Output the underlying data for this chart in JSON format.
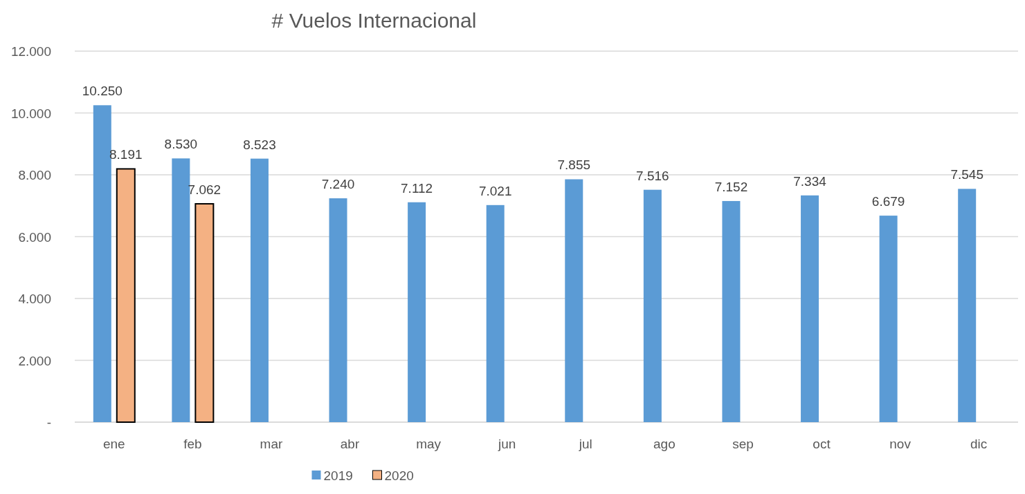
{
  "chart_data": {
    "type": "bar",
    "title": "# Vuelos Internacional",
    "categories": [
      "ene",
      "feb",
      "mar",
      "abr",
      "may",
      "jun",
      "jul",
      "ago",
      "sep",
      "oct",
      "nov",
      "dic"
    ],
    "series": [
      {
        "name": "2019",
        "color": "#5b9bd5",
        "values": [
          10250,
          8530,
          8523,
          7240,
          7112,
          7021,
          7855,
          7516,
          7152,
          7334,
          6679,
          7545
        ],
        "value_labels": [
          "10.250",
          "8.530",
          "8.523",
          "7.240",
          "7.112",
          "7.021",
          "7.855",
          "7.516",
          "7.152",
          "7.334",
          "6.679",
          "7.545"
        ]
      },
      {
        "name": "2020",
        "color": "#f4b183",
        "values": [
          8191,
          7062,
          null,
          null,
          null,
          null,
          null,
          null,
          null,
          null,
          null,
          null
        ],
        "value_labels": [
          "8.191",
          "7.062",
          null,
          null,
          null,
          null,
          null,
          null,
          null,
          null,
          null,
          null
        ]
      }
    ],
    "ylim": [
      0,
      12000
    ],
    "yticks": [
      {
        "value": 0,
        "label": "-"
      },
      {
        "value": 2000,
        "label": "2.000"
      },
      {
        "value": 4000,
        "label": "4.000"
      },
      {
        "value": 6000,
        "label": "6.000"
      },
      {
        "value": 8000,
        "label": "8.000"
      },
      {
        "value": 10000,
        "label": "10.000"
      },
      {
        "value": 12000,
        "label": "12.000"
      }
    ],
    "grid": "y",
    "legend": "bottom"
  }
}
